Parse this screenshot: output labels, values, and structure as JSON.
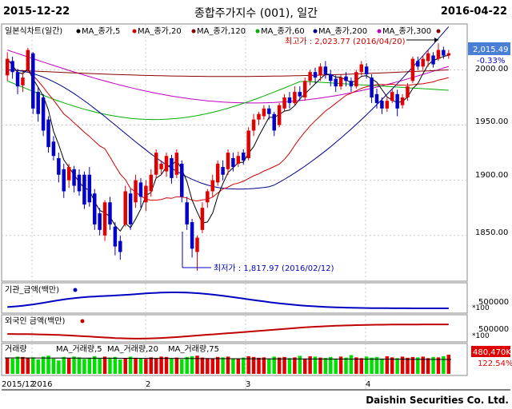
{
  "header": {
    "start_date": "2015-12-22",
    "title": "종합주가지수 (001), 일간",
    "end_date": "2016-04-22"
  },
  "colors": {
    "up": "#e00000",
    "down": "#0000c8",
    "ma5": "#000000",
    "ma20": "#d00000",
    "ma60": "#00b000",
    "ma120": "#8b0000",
    "ma200": "#00008b",
    "ma300": "#c000c0",
    "volume": "#00e000",
    "inst": "#0000c0",
    "foreign": "#c00000",
    "grid": "#c8c8c8",
    "price_box": "#4a7fd6"
  },
  "price_legend": {
    "series": "일본식차트(일간)",
    "ma5": "MA_종가,5",
    "ma20": "MA_종가,20",
    "ma120": "MA_종가,120",
    "ma60": "MA_종가,60",
    "ma200": "MA_종가,200",
    "ma300": "MA_종가,300"
  },
  "annotations": {
    "high": "최고가 : 2,023.77 (2016/04/20)",
    "low": "최저가 : 1,817.97 (2016/02/12)"
  },
  "last_price": {
    "value": "2,015.49",
    "change": "-0.33%"
  },
  "price_axis": [
    "2000.00",
    "1950.00",
    "1900.00",
    "1850.00"
  ],
  "inst_panel": {
    "legend": "기관_금액(백만)",
    "axis": "500000",
    "unit": "*100"
  },
  "foreign_panel": {
    "legend": "외국인 금액(백만)",
    "axis": "500000",
    "unit": "*100"
  },
  "volume_panel": {
    "legend_volume": "거래량",
    "legend_ma5": "MA_거래량,5",
    "legend_ma20": "MA_거래량,20",
    "legend_ma75": "MA_거래량,75",
    "value": "480,470K",
    "pct": "122.54%"
  },
  "x_axis": {
    "labels": [
      "2015/12",
      "2016",
      "2",
      "3",
      "4"
    ]
  },
  "brand": "Daishin Securities Co. Ltd.",
  "chart_data": {
    "type": "candlestick",
    "title": "종합주가지수 (001), 일간",
    "ylim": [
      1810,
      2030
    ],
    "candles": [
      {
        "o": 1995,
        "c": 2010,
        "h": 2016,
        "l": 1990
      },
      {
        "o": 2008,
        "c": 1998,
        "h": 2012,
        "l": 1992
      },
      {
        "o": 1998,
        "c": 1985,
        "h": 2001,
        "l": 1978
      },
      {
        "o": 1986,
        "c": 1993,
        "h": 1998,
        "l": 1980
      },
      {
        "o": 2000,
        "c": 2018,
        "h": 2020,
        "l": 1998
      },
      {
        "o": 2015,
        "c": 1965,
        "h": 2016,
        "l": 1960
      },
      {
        "o": 1980,
        "c": 1960,
        "h": 1984,
        "l": 1953
      },
      {
        "o": 1975,
        "c": 1945,
        "h": 1978,
        "l": 1940
      },
      {
        "o": 1955,
        "c": 1930,
        "h": 1958,
        "l": 1925
      },
      {
        "o": 1935,
        "c": 1922,
        "h": 1940,
        "l": 1918
      },
      {
        "o": 1920,
        "c": 1905,
        "h": 1925,
        "l": 1898
      },
      {
        "o": 1910,
        "c": 1890,
        "h": 1915,
        "l": 1884
      },
      {
        "o": 1900,
        "c": 1912,
        "h": 1915,
        "l": 1893
      },
      {
        "o": 1910,
        "c": 1895,
        "h": 1913,
        "l": 1889
      },
      {
        "o": 1905,
        "c": 1890,
        "h": 1910,
        "l": 1886
      },
      {
        "o": 1905,
        "c": 1878,
        "h": 1908,
        "l": 1874
      },
      {
        "o": 1905,
        "c": 1880,
        "h": 1912,
        "l": 1876
      },
      {
        "o": 1888,
        "c": 1860,
        "h": 1892,
        "l": 1855
      },
      {
        "o": 1870,
        "c": 1855,
        "h": 1875,
        "l": 1850
      },
      {
        "o": 1850,
        "c": 1880,
        "h": 1882,
        "l": 1845
      },
      {
        "o": 1880,
        "c": 1860,
        "h": 1885,
        "l": 1855
      },
      {
        "o": 1858,
        "c": 1840,
        "h": 1862,
        "l": 1832
      },
      {
        "o": 1845,
        "c": 1835,
        "h": 1850,
        "l": 1828
      },
      {
        "o": 1860,
        "c": 1890,
        "h": 1895,
        "l": 1858
      },
      {
        "o": 1888,
        "c": 1860,
        "h": 1892,
        "l": 1855
      },
      {
        "o": 1880,
        "c": 1900,
        "h": 1905,
        "l": 1875
      },
      {
        "o": 1898,
        "c": 1885,
        "h": 1902,
        "l": 1875
      },
      {
        "o": 1880,
        "c": 1895,
        "h": 1900,
        "l": 1872
      },
      {
        "o": 1890,
        "c": 1905,
        "h": 1910,
        "l": 1885
      },
      {
        "o": 1905,
        "c": 1925,
        "h": 1928,
        "l": 1902
      },
      {
        "o": 1910,
        "c": 1915,
        "h": 1918,
        "l": 1905
      },
      {
        "o": 1908,
        "c": 1922,
        "h": 1925,
        "l": 1903
      },
      {
        "o": 1920,
        "c": 1902,
        "h": 1923,
        "l": 1897
      },
      {
        "o": 1905,
        "c": 1925,
        "h": 1928,
        "l": 1902
      },
      {
        "o": 1915,
        "c": 1885,
        "h": 1918,
        "l": 1880
      },
      {
        "o": 1880,
        "c": 1860,
        "h": 1885,
        "l": 1855
      },
      {
        "o": 1862,
        "c": 1838,
        "h": 1865,
        "l": 1830
      },
      {
        "o": 1835,
        "c": 1848,
        "h": 1850,
        "l": 1818
      },
      {
        "o": 1855,
        "c": 1875,
        "h": 1880,
        "l": 1852
      },
      {
        "o": 1880,
        "c": 1890,
        "h": 1892,
        "l": 1875
      },
      {
        "o": 1890,
        "c": 1900,
        "h": 1905,
        "l": 1885
      },
      {
        "o": 1898,
        "c": 1915,
        "h": 1918,
        "l": 1895
      },
      {
        "o": 1912,
        "c": 1905,
        "h": 1918,
        "l": 1900
      },
      {
        "o": 1910,
        "c": 1925,
        "h": 1928,
        "l": 1905
      },
      {
        "o": 1920,
        "c": 1912,
        "h": 1925,
        "l": 1908
      },
      {
        "o": 1915,
        "c": 1922,
        "h": 1926,
        "l": 1912
      },
      {
        "o": 1925,
        "c": 1918,
        "h": 1928,
        "l": 1914
      },
      {
        "o": 1920,
        "c": 1945,
        "h": 1948,
        "l": 1918
      },
      {
        "o": 1945,
        "c": 1955,
        "h": 1960,
        "l": 1940
      },
      {
        "o": 1955,
        "c": 1960,
        "h": 1962,
        "l": 1950
      },
      {
        "o": 1958,
        "c": 1965,
        "h": 1968,
        "l": 1955
      },
      {
        "o": 1965,
        "c": 1960,
        "h": 1968,
        "l": 1955
      },
      {
        "o": 1960,
        "c": 1945,
        "h": 1962,
        "l": 1940
      },
      {
        "o": 1950,
        "c": 1968,
        "h": 1970,
        "l": 1948
      },
      {
        "o": 1965,
        "c": 1975,
        "h": 1978,
        "l": 1962
      },
      {
        "o": 1975,
        "c": 1970,
        "h": 1980,
        "l": 1965
      },
      {
        "o": 1970,
        "c": 1980,
        "h": 1985,
        "l": 1968
      },
      {
        "o": 1980,
        "c": 1976,
        "h": 1985,
        "l": 1972
      },
      {
        "o": 1975,
        "c": 1990,
        "h": 1993,
        "l": 1972
      },
      {
        "o": 1990,
        "c": 1998,
        "h": 2000,
        "l": 1986
      },
      {
        "o": 1998,
        "c": 1993,
        "h": 2002,
        "l": 1988
      },
      {
        "o": 1995,
        "c": 2003,
        "h": 2006,
        "l": 1990
      },
      {
        "o": 2003,
        "c": 1996,
        "h": 2008,
        "l": 1992
      },
      {
        "o": 1996,
        "c": 1990,
        "h": 2000,
        "l": 1985
      },
      {
        "o": 1992,
        "c": 1985,
        "h": 1995,
        "l": 1980
      },
      {
        "o": 1985,
        "c": 1993,
        "h": 1996,
        "l": 1982
      },
      {
        "o": 1994,
        "c": 1990,
        "h": 1998,
        "l": 1985
      },
      {
        "o": 1990,
        "c": 1985,
        "h": 1993,
        "l": 1980
      },
      {
        "o": 1985,
        "c": 1998,
        "h": 2000,
        "l": 1983
      },
      {
        "o": 1998,
        "c": 2005,
        "h": 2008,
        "l": 1995
      },
      {
        "o": 2003,
        "c": 1996,
        "h": 2006,
        "l": 1992
      },
      {
        "o": 1993,
        "c": 1975,
        "h": 1996,
        "l": 1970
      },
      {
        "o": 1978,
        "c": 1970,
        "h": 1983,
        "l": 1965
      },
      {
        "o": 1972,
        "c": 1965,
        "h": 1975,
        "l": 1960
      },
      {
        "o": 1965,
        "c": 1972,
        "h": 1976,
        "l": 1962
      },
      {
        "o": 1972,
        "c": 1980,
        "h": 1983,
        "l": 1970
      },
      {
        "o": 1978,
        "c": 1965,
        "h": 1982,
        "l": 1958
      },
      {
        "o": 1968,
        "c": 1975,
        "h": 1978,
        "l": 1965
      },
      {
        "o": 1975,
        "c": 1985,
        "h": 1988,
        "l": 1972
      },
      {
        "o": 1990,
        "c": 2010,
        "h": 2012,
        "l": 1988
      },
      {
        "o": 2008,
        "c": 2003,
        "h": 2012,
        "l": 2000
      },
      {
        "o": 2003,
        "c": 2010,
        "h": 2013,
        "l": 2000
      },
      {
        "o": 2008,
        "c": 2015,
        "h": 2018,
        "l": 2003
      },
      {
        "o": 2013,
        "c": 2005,
        "h": 2016,
        "l": 2002
      },
      {
        "o": 2010,
        "c": 2018,
        "h": 2024,
        "l": 2008
      },
      {
        "o": 2018,
        "c": 2013,
        "h": 2021,
        "l": 2010
      },
      {
        "o": 2013,
        "c": 2015,
        "h": 2018,
        "l": 2010
      }
    ],
    "volume": [
      0.85,
      0.8,
      0.9,
      0.88,
      0.82,
      0.86,
      0.75,
      0.9,
      0.95,
      0.8,
      0.7,
      0.88,
      0.82,
      0.9,
      0.86,
      0.78,
      0.84,
      0.92,
      0.8,
      0.9,
      0.85,
      0.88,
      0.75,
      0.8,
      0.9,
      0.84,
      0.82,
      0.78,
      0.86,
      0.8,
      0.9,
      0.88,
      0.82,
      0.85,
      0.76,
      0.88,
      0.92,
      0.95,
      0.85,
      0.82,
      0.8,
      0.88,
      0.86,
      0.9,
      0.8,
      0.78,
      0.85,
      0.92,
      0.88,
      0.84,
      0.86,
      0.8,
      0.9,
      0.85,
      0.88,
      0.82,
      0.86,
      0.94,
      0.8,
      0.92,
      0.9,
      0.85,
      0.83,
      0.88,
      0.8,
      0.9,
      0.85,
      0.98,
      0.86,
      0.82,
      0.9,
      0.85,
      0.88,
      0.8,
      0.92,
      0.86,
      0.82,
      0.9,
      0.84,
      0.88,
      0.86,
      0.9,
      0.82,
      0.88,
      0.86,
      0.92,
      1.0
    ]
  }
}
